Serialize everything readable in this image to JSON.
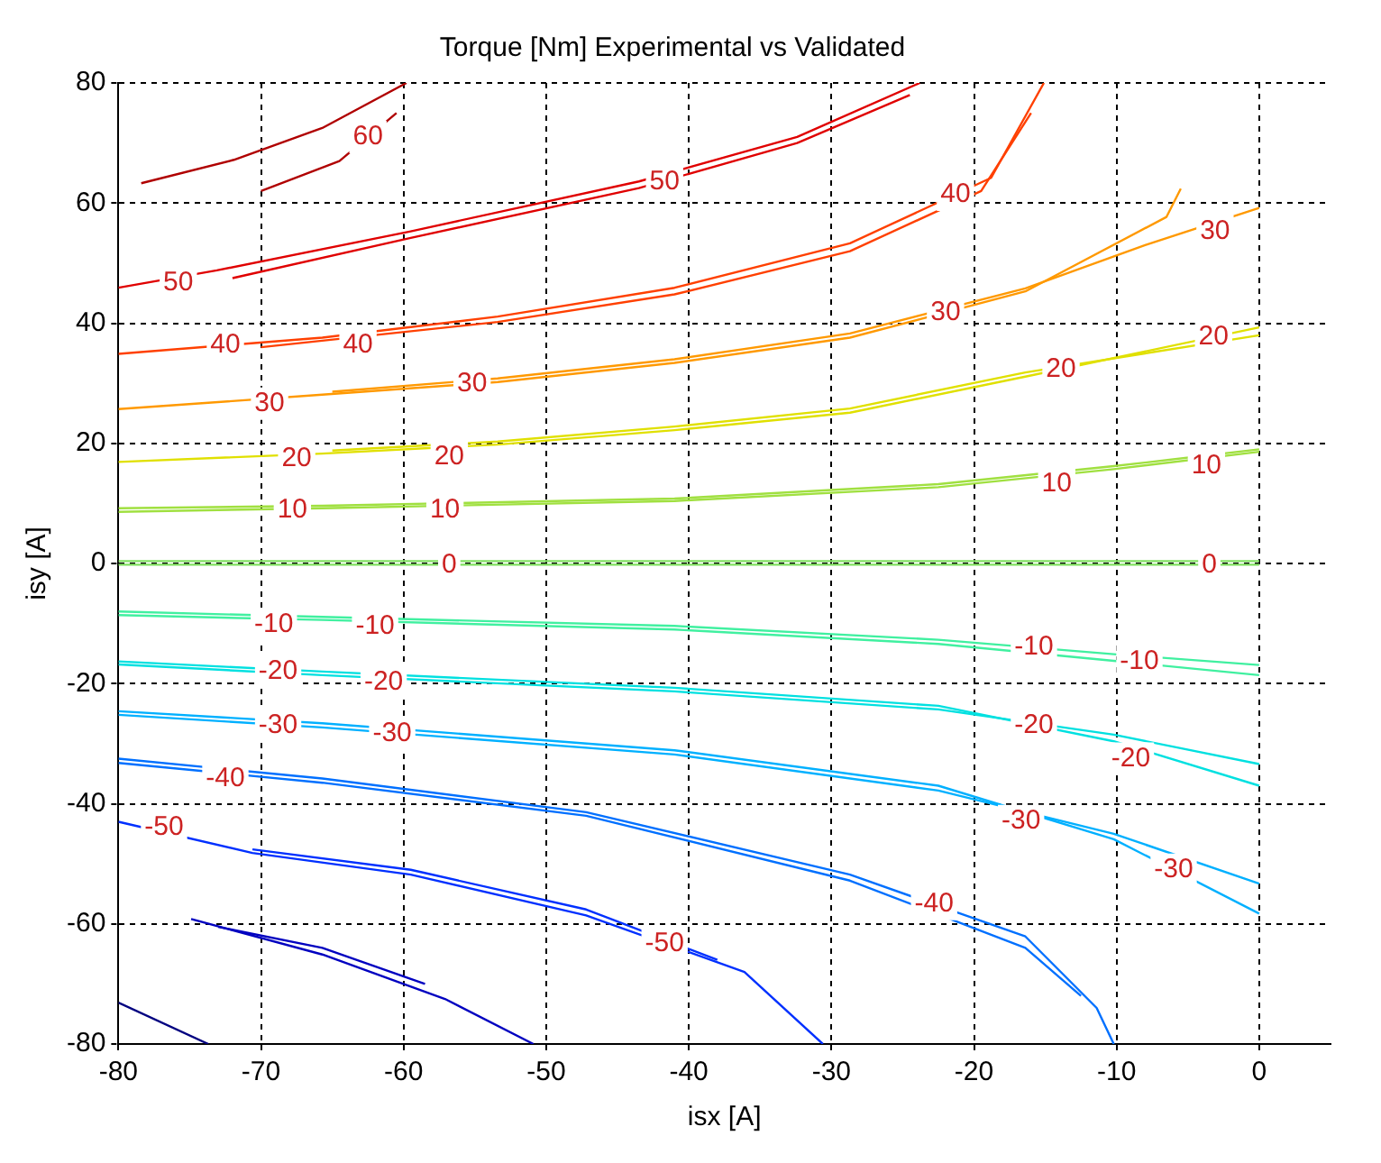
{
  "chart_data": {
    "type": "line",
    "title": "Torque [Nm] Experimental vs Validated",
    "xlabel": "isx [A]",
    "ylabel": "isy [A]",
    "xlim": [
      -80,
      5
    ],
    "ylim": [
      -80,
      80
    ],
    "xticks": [
      -80,
      -70,
      -60,
      -50,
      -40,
      -30,
      -20,
      -10,
      0
    ],
    "yticks": [
      -80,
      -60,
      -40,
      -20,
      0,
      20,
      40,
      60,
      80
    ],
    "grid": true,
    "legend": false,
    "marker": "none",
    "line_style": "solid",
    "series": [
      {
        "color": "#b00000",
        "x": [
          -78.4,
          -71.9,
          -65.7,
          -59.8
        ],
        "values": [
          63.3,
          67.2,
          72.5,
          80
        ]
      },
      {
        "color": "#b00000",
        "x": [
          -70,
          -64.5,
          -60.5
        ],
        "values": [
          62,
          67,
          75
        ]
      },
      {
        "color": "#e00000",
        "x": [
          -80,
          -73.1,
          -59.5,
          -43.5,
          -32.4,
          -23.8
        ],
        "values": [
          45.9,
          48.8,
          55.3,
          63.6,
          71,
          80
        ]
      },
      {
        "color": "#e00000",
        "x": [
          -72,
          -59.5,
          -43.5,
          -32.4,
          -24.5
        ],
        "values": [
          47.5,
          54.2,
          62.5,
          70,
          78
        ]
      },
      {
        "color": "#ff4000",
        "x": [
          -80,
          -65.7,
          -53.4,
          -41,
          -28.7,
          -18.8,
          -15.1
        ],
        "values": [
          34.9,
          37.6,
          41.1,
          45.9,
          53.3,
          64.2,
          80
        ]
      },
      {
        "color": "#ff4000",
        "x": [
          -70,
          -53.4,
          -41,
          -28.7,
          -19.5,
          -16
        ],
        "values": [
          36,
          40.2,
          44.8,
          52,
          62,
          75
        ]
      },
      {
        "color": "#ff9900",
        "x": [
          -80,
          -65.7,
          -53.4,
          -41,
          -28.7,
          -16.4,
          -6.5,
          -5.5
        ],
        "values": [
          25.7,
          28.1,
          30.2,
          33.4,
          37.6,
          45.3,
          57.7,
          62.4
        ]
      },
      {
        "color": "#ff9900",
        "x": [
          -65,
          -53.4,
          -41,
          -28.7,
          -16.4,
          -8,
          0
        ],
        "values": [
          28.6,
          30.8,
          34,
          38.3,
          45.8,
          53,
          59.2
        ]
      },
      {
        "color": "#e0e000",
        "x": [
          -80,
          -65.7,
          -53.4,
          -41,
          -28.7,
          -16.4,
          0
        ],
        "values": [
          16.9,
          18.3,
          19.8,
          22.2,
          25.1,
          31.1,
          39.3
        ]
      },
      {
        "color": "#e0e000",
        "x": [
          -65,
          -53.4,
          -41,
          -28.7,
          -16.4,
          0
        ],
        "values": [
          18.8,
          20.3,
          22.8,
          25.8,
          31.8,
          38
        ]
      },
      {
        "color": "#a0e040",
        "x": [
          -80,
          -65.7,
          -41,
          -22.5,
          -10.2,
          0
        ],
        "values": [
          8.6,
          9.2,
          10.4,
          12.7,
          15.7,
          18.6
        ]
      },
      {
        "color": "#a0e040",
        "x": [
          -80,
          -65.7,
          -41,
          -22.5,
          -10.2,
          0
        ],
        "values": [
          9.2,
          9.6,
          10.8,
          13.2,
          16.2,
          19
        ]
      },
      {
        "color": "#80e060",
        "x": [
          -80,
          -40,
          0
        ],
        "values": [
          0.4,
          0.4,
          0.4
        ]
      },
      {
        "color": "#80e060",
        "x": [
          -80,
          -40,
          0
        ],
        "values": [
          -0.2,
          -0.2,
          -0.2
        ]
      },
      {
        "color": "#40f0a0",
        "x": [
          -80,
          -65.7,
          -41,
          -22.5,
          -10.2,
          0
        ],
        "values": [
          -8,
          -8.9,
          -10.4,
          -12.7,
          -15.1,
          -16.9
        ]
      },
      {
        "color": "#40f0a0",
        "x": [
          -80,
          -65.7,
          -41,
          -22.5,
          -10.2,
          0
        ],
        "values": [
          -8.6,
          -9.4,
          -11,
          -13.4,
          -16.2,
          -18.6
        ]
      },
      {
        "color": "#00e0e0",
        "x": [
          -80,
          -65.7,
          -41,
          -22.5,
          -10.2,
          0
        ],
        "values": [
          -16.3,
          -18,
          -20.7,
          -23.7,
          -29.6,
          -37
        ]
      },
      {
        "color": "#00e0e0",
        "x": [
          -80,
          -65.7,
          -41,
          -22.5,
          -10.2,
          0
        ],
        "values": [
          -16.8,
          -18.6,
          -21.3,
          -24.3,
          -28.5,
          -33.4
        ]
      },
      {
        "color": "#00b0ff",
        "x": [
          -80,
          -65.7,
          -41,
          -22.5,
          -10.2,
          0
        ],
        "values": [
          -24.6,
          -26.6,
          -31.1,
          -37,
          -45.9,
          -58.3
        ]
      },
      {
        "color": "#00b0ff",
        "x": [
          -80,
          -65.7,
          -41,
          -22.5,
          -10.2,
          0
        ],
        "values": [
          -25.2,
          -27.3,
          -31.8,
          -37.8,
          -45,
          -53.3
        ]
      },
      {
        "color": "#0070ff",
        "x": [
          -80,
          -65.7,
          -47.2,
          -28.7,
          -16.4,
          -11.4,
          -10.2
        ],
        "values": [
          -32.5,
          -35.8,
          -41.4,
          -51.8,
          -62.1,
          -74,
          -80
        ]
      },
      {
        "color": "#0070ff",
        "x": [
          -80,
          -65.7,
          -47.2,
          -28.7,
          -16.4,
          -12.5
        ],
        "values": [
          -33.2,
          -36.5,
          -42,
          -52.8,
          -64,
          -72
        ]
      },
      {
        "color": "#0030ff",
        "x": [
          -80,
          -70.6,
          -59.5,
          -47.2,
          -36.1,
          -30.6
        ],
        "values": [
          -43,
          -48.2,
          -51.8,
          -58.6,
          -68,
          -80
        ]
      },
      {
        "color": "#0030ff",
        "x": [
          -70.6,
          -59.5,
          -47.2,
          -38
        ],
        "values": [
          -47.6,
          -51,
          -57.6,
          -66
        ]
      },
      {
        "color": "#0000c0",
        "x": [
          -74.9,
          -65.7,
          -57.1,
          -50.9
        ],
        "values": [
          -59.2,
          -65.1,
          -72.5,
          -80
        ]
      },
      {
        "color": "#0000c0",
        "x": [
          -73,
          -65.7,
          -58.5
        ],
        "values": [
          -60.5,
          -64,
          -70
        ]
      },
      {
        "color": "#000080",
        "x": [
          -80,
          -73.7
        ],
        "values": [
          -73.1,
          -80
        ]
      }
    ],
    "annotations": [
      {
        "text": "60",
        "x": -62.5,
        "y": 71
      },
      {
        "text": "50",
        "x": -75.8,
        "y": 46.7
      },
      {
        "text": "50",
        "x": -41.7,
        "y": 63.6
      },
      {
        "text": "40",
        "x": -72.5,
        "y": 36.4
      },
      {
        "text": "40",
        "x": -63.2,
        "y": 36.4
      },
      {
        "text": "40",
        "x": -21.3,
        "y": 61.4
      },
      {
        "text": "30",
        "x": -69.4,
        "y": 26.6
      },
      {
        "text": "30",
        "x": -55.2,
        "y": 29.9
      },
      {
        "text": "30",
        "x": -22,
        "y": 41.8
      },
      {
        "text": "30",
        "x": -3.1,
        "y": 55.3
      },
      {
        "text": "20",
        "x": -67.5,
        "y": 17.5
      },
      {
        "text": "20",
        "x": -56.8,
        "y": 17.8
      },
      {
        "text": "20",
        "x": -13.9,
        "y": 32.3
      },
      {
        "text": "20",
        "x": -3.2,
        "y": 37.7
      },
      {
        "text": "10",
        "x": -67.8,
        "y": 8.9
      },
      {
        "text": "10",
        "x": -57.1,
        "y": 8.9
      },
      {
        "text": "10",
        "x": -14.2,
        "y": 13.3
      },
      {
        "text": "10",
        "x": -3.7,
        "y": 16.3
      },
      {
        "text": "0",
        "x": -56.8,
        "y": -0.3
      },
      {
        "text": "0",
        "x": -3.5,
        "y": -0.3
      },
      {
        "text": "-10",
        "x": -69.1,
        "y": -10.1
      },
      {
        "text": "-10",
        "x": -62,
        "y": -10.4
      },
      {
        "text": "-10",
        "x": -15.8,
        "y": -13.9
      },
      {
        "text": "-10",
        "x": -8.4,
        "y": -16.3
      },
      {
        "text": "-20",
        "x": -68.8,
        "y": -18
      },
      {
        "text": "-20",
        "x": -61.4,
        "y": -19.8
      },
      {
        "text": "-20",
        "x": -15.8,
        "y": -26.9
      },
      {
        "text": "-20",
        "x": -9,
        "y": -32.5
      },
      {
        "text": "-30",
        "x": -68.8,
        "y": -26.9
      },
      {
        "text": "-30",
        "x": -60.8,
        "y": -28.4
      },
      {
        "text": "-30",
        "x": -16.7,
        "y": -42.9
      },
      {
        "text": "-30",
        "x": -6,
        "y": -51
      },
      {
        "text": "-40",
        "x": -72.5,
        "y": -35.8
      },
      {
        "text": "-40",
        "x": -22.8,
        "y": -56.7
      },
      {
        "text": "-50",
        "x": -76.8,
        "y": -44
      },
      {
        "text": "-50",
        "x": -41.7,
        "y": -63.3
      }
    ]
  }
}
